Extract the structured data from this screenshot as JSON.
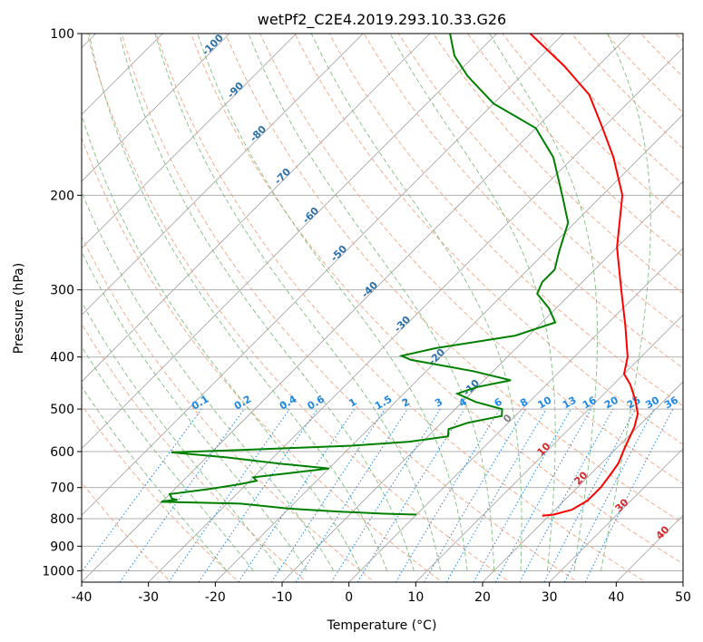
{
  "chart_data": {
    "type": "line",
    "subtype": "skew-t log-p diagram",
    "title": "wetPf2_C2E4.2019.293.10.33.G26",
    "xlabel": "Temperature (°C)",
    "ylabel": "Pressure (hPa)",
    "xlim": [
      -40,
      50
    ],
    "ylim": [
      1050,
      100
    ],
    "y_scale": "log",
    "x_ticks": [
      -40,
      -30,
      -20,
      -10,
      0,
      10,
      20,
      30,
      40,
      50
    ],
    "y_ticks": [
      100,
      200,
      300,
      400,
      500,
      600,
      700,
      800,
      900,
      1000
    ],
    "grid": true,
    "series": [
      {
        "color": "#ff0000",
        "values": [
          [
            19,
            790
          ],
          [
            20.5,
            786
          ],
          [
            22.5,
            770
          ],
          [
            23.5,
            740
          ],
          [
            23.5,
            700
          ],
          [
            23,
            660
          ],
          [
            22.5,
            630
          ],
          [
            21.5,
            600
          ],
          [
            20.5,
            570
          ],
          [
            19.5,
            540
          ],
          [
            18,
            510
          ],
          [
            15.5,
            480
          ],
          [
            12.5,
            450
          ],
          [
            10,
            430
          ],
          [
            8,
            400
          ],
          [
            3,
            350
          ],
          [
            -3,
            300
          ],
          [
            -10,
            250
          ],
          [
            -17,
            200
          ],
          [
            -24,
            170
          ],
          [
            -30,
            150
          ],
          [
            -37,
            130
          ],
          [
            -45,
            115
          ],
          [
            -55,
            100
          ]
        ]
      },
      {
        "color": "#008000",
        "values": [
          [
            0,
            786
          ],
          [
            -5,
            783
          ],
          [
            -12,
            776
          ],
          [
            -20,
            766
          ],
          [
            -28,
            750
          ],
          [
            -40,
            744
          ],
          [
            -40,
            742
          ],
          [
            -38,
            738
          ],
          [
            -39,
            734
          ],
          [
            -40,
            720
          ],
          [
            -35,
            705
          ],
          [
            -31,
            690
          ],
          [
            -29,
            680
          ],
          [
            -30,
            670
          ],
          [
            -26,
            660
          ],
          [
            -20,
            645
          ],
          [
            -28,
            632
          ],
          [
            -37,
            615
          ],
          [
            -46,
            602
          ],
          [
            -36,
            596
          ],
          [
            -20,
            585
          ],
          [
            -12,
            575
          ],
          [
            -7,
            562
          ],
          [
            -8,
            545
          ],
          [
            -6,
            530
          ],
          [
            -2,
            515
          ],
          [
            -3,
            500
          ],
          [
            -8,
            485
          ],
          [
            -12,
            468
          ],
          [
            -10,
            455
          ],
          [
            -6,
            442
          ],
          [
            -13,
            425
          ],
          [
            -24,
            405
          ],
          [
            -26,
            398
          ],
          [
            -22,
            385
          ],
          [
            -12,
            365
          ],
          [
            -8,
            345
          ],
          [
            -11,
            325
          ],
          [
            -15,
            305
          ],
          [
            -16,
            290
          ],
          [
            -16,
            275
          ],
          [
            -18,
            255
          ],
          [
            -21,
            225
          ],
          [
            -26,
            200
          ],
          [
            -33,
            170
          ],
          [
            -40,
            150
          ],
          [
            -50,
            135
          ],
          [
            -58,
            120
          ],
          [
            -63,
            110
          ],
          [
            -67,
            100
          ]
        ]
      }
    ],
    "reference_lines": {
      "dry_adiabat_labels": [
        "-100",
        "-90",
        "-80",
        "-70",
        "-60",
        "-50",
        "-40",
        "-30",
        "-20",
        "-10",
        "0",
        "10",
        "20",
        "30",
        "40"
      ],
      "mixing_ratio_labels": [
        "0.1",
        "0.2",
        "0.4",
        "0.6",
        "1",
        "1.5",
        "2",
        "3",
        "4",
        "6",
        "8",
        "10",
        "13",
        "16",
        "20",
        "25",
        "30",
        "36"
      ]
    },
    "colors": {
      "dry_adiabats": "#f4a582",
      "moist_adiabats": "#7fbf7f",
      "mixing_ratio": "#1e88e5",
      "isotherms": "#a0a0a0"
    }
  }
}
